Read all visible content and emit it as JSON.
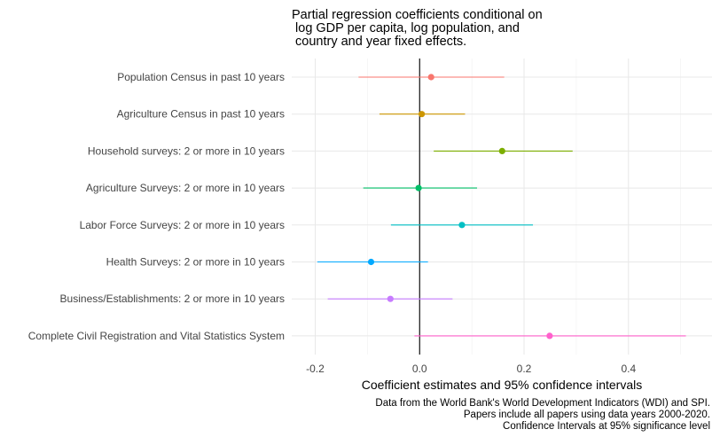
{
  "chart_data": {
    "type": "scatter",
    "subtype": "coefficient-plot-with-error-bars",
    "title_lines": [
      "Partial regression coefficients conditional on",
      " log GDP per capita, log population, and",
      " country and year fixed effects."
    ],
    "xlabel": "Coefficient estimates and 95% confidence intervals",
    "ylabel": "",
    "xlim": [
      -0.245,
      0.56
    ],
    "x_ticks": [
      -0.2,
      0.0,
      0.2,
      0.4
    ],
    "x_tick_labels": [
      "-0.2",
      "0.0",
      "0.2",
      "0.4"
    ],
    "reference_line_x": 0,
    "grid": true,
    "legend": "none",
    "categories": [
      "Population Census in past 10 years",
      "Agriculture Census  in past 10 years",
      "Household surveys: 2 or more in 10 years",
      "Agriculture Surveys: 2 or more in 10 years",
      "Labor Force Surveys: 2 or more in 10 years",
      "Health Surveys: 2 or more in 10 years",
      "Business/Establishments: 2 or more in 10 years",
      "Complete Civil Registration and Vital Statistics System"
    ],
    "estimates": [
      0.022,
      0.004,
      0.158,
      -0.002,
      0.081,
      -0.093,
      -0.056,
      0.249
    ],
    "ci_low": [
      -0.117,
      -0.077,
      0.027,
      -0.108,
      -0.055,
      -0.196,
      -0.176,
      -0.01
    ],
    "ci_high": [
      0.162,
      0.087,
      0.293,
      0.11,
      0.217,
      0.016,
      0.063,
      0.51
    ],
    "colors": [
      "#F8766D",
      "#CD9600",
      "#7CAE00",
      "#00BE67",
      "#00BFC4",
      "#00A9FF",
      "#C77CFF",
      "#FF61CC"
    ],
    "caption_lines": [
      "Data from the World Bank's World Development Indicators (WDI) and SPI.",
      "Papers include all papers using data years 2000-2020.",
      "Confidence Intervals at 95% significance level"
    ]
  }
}
